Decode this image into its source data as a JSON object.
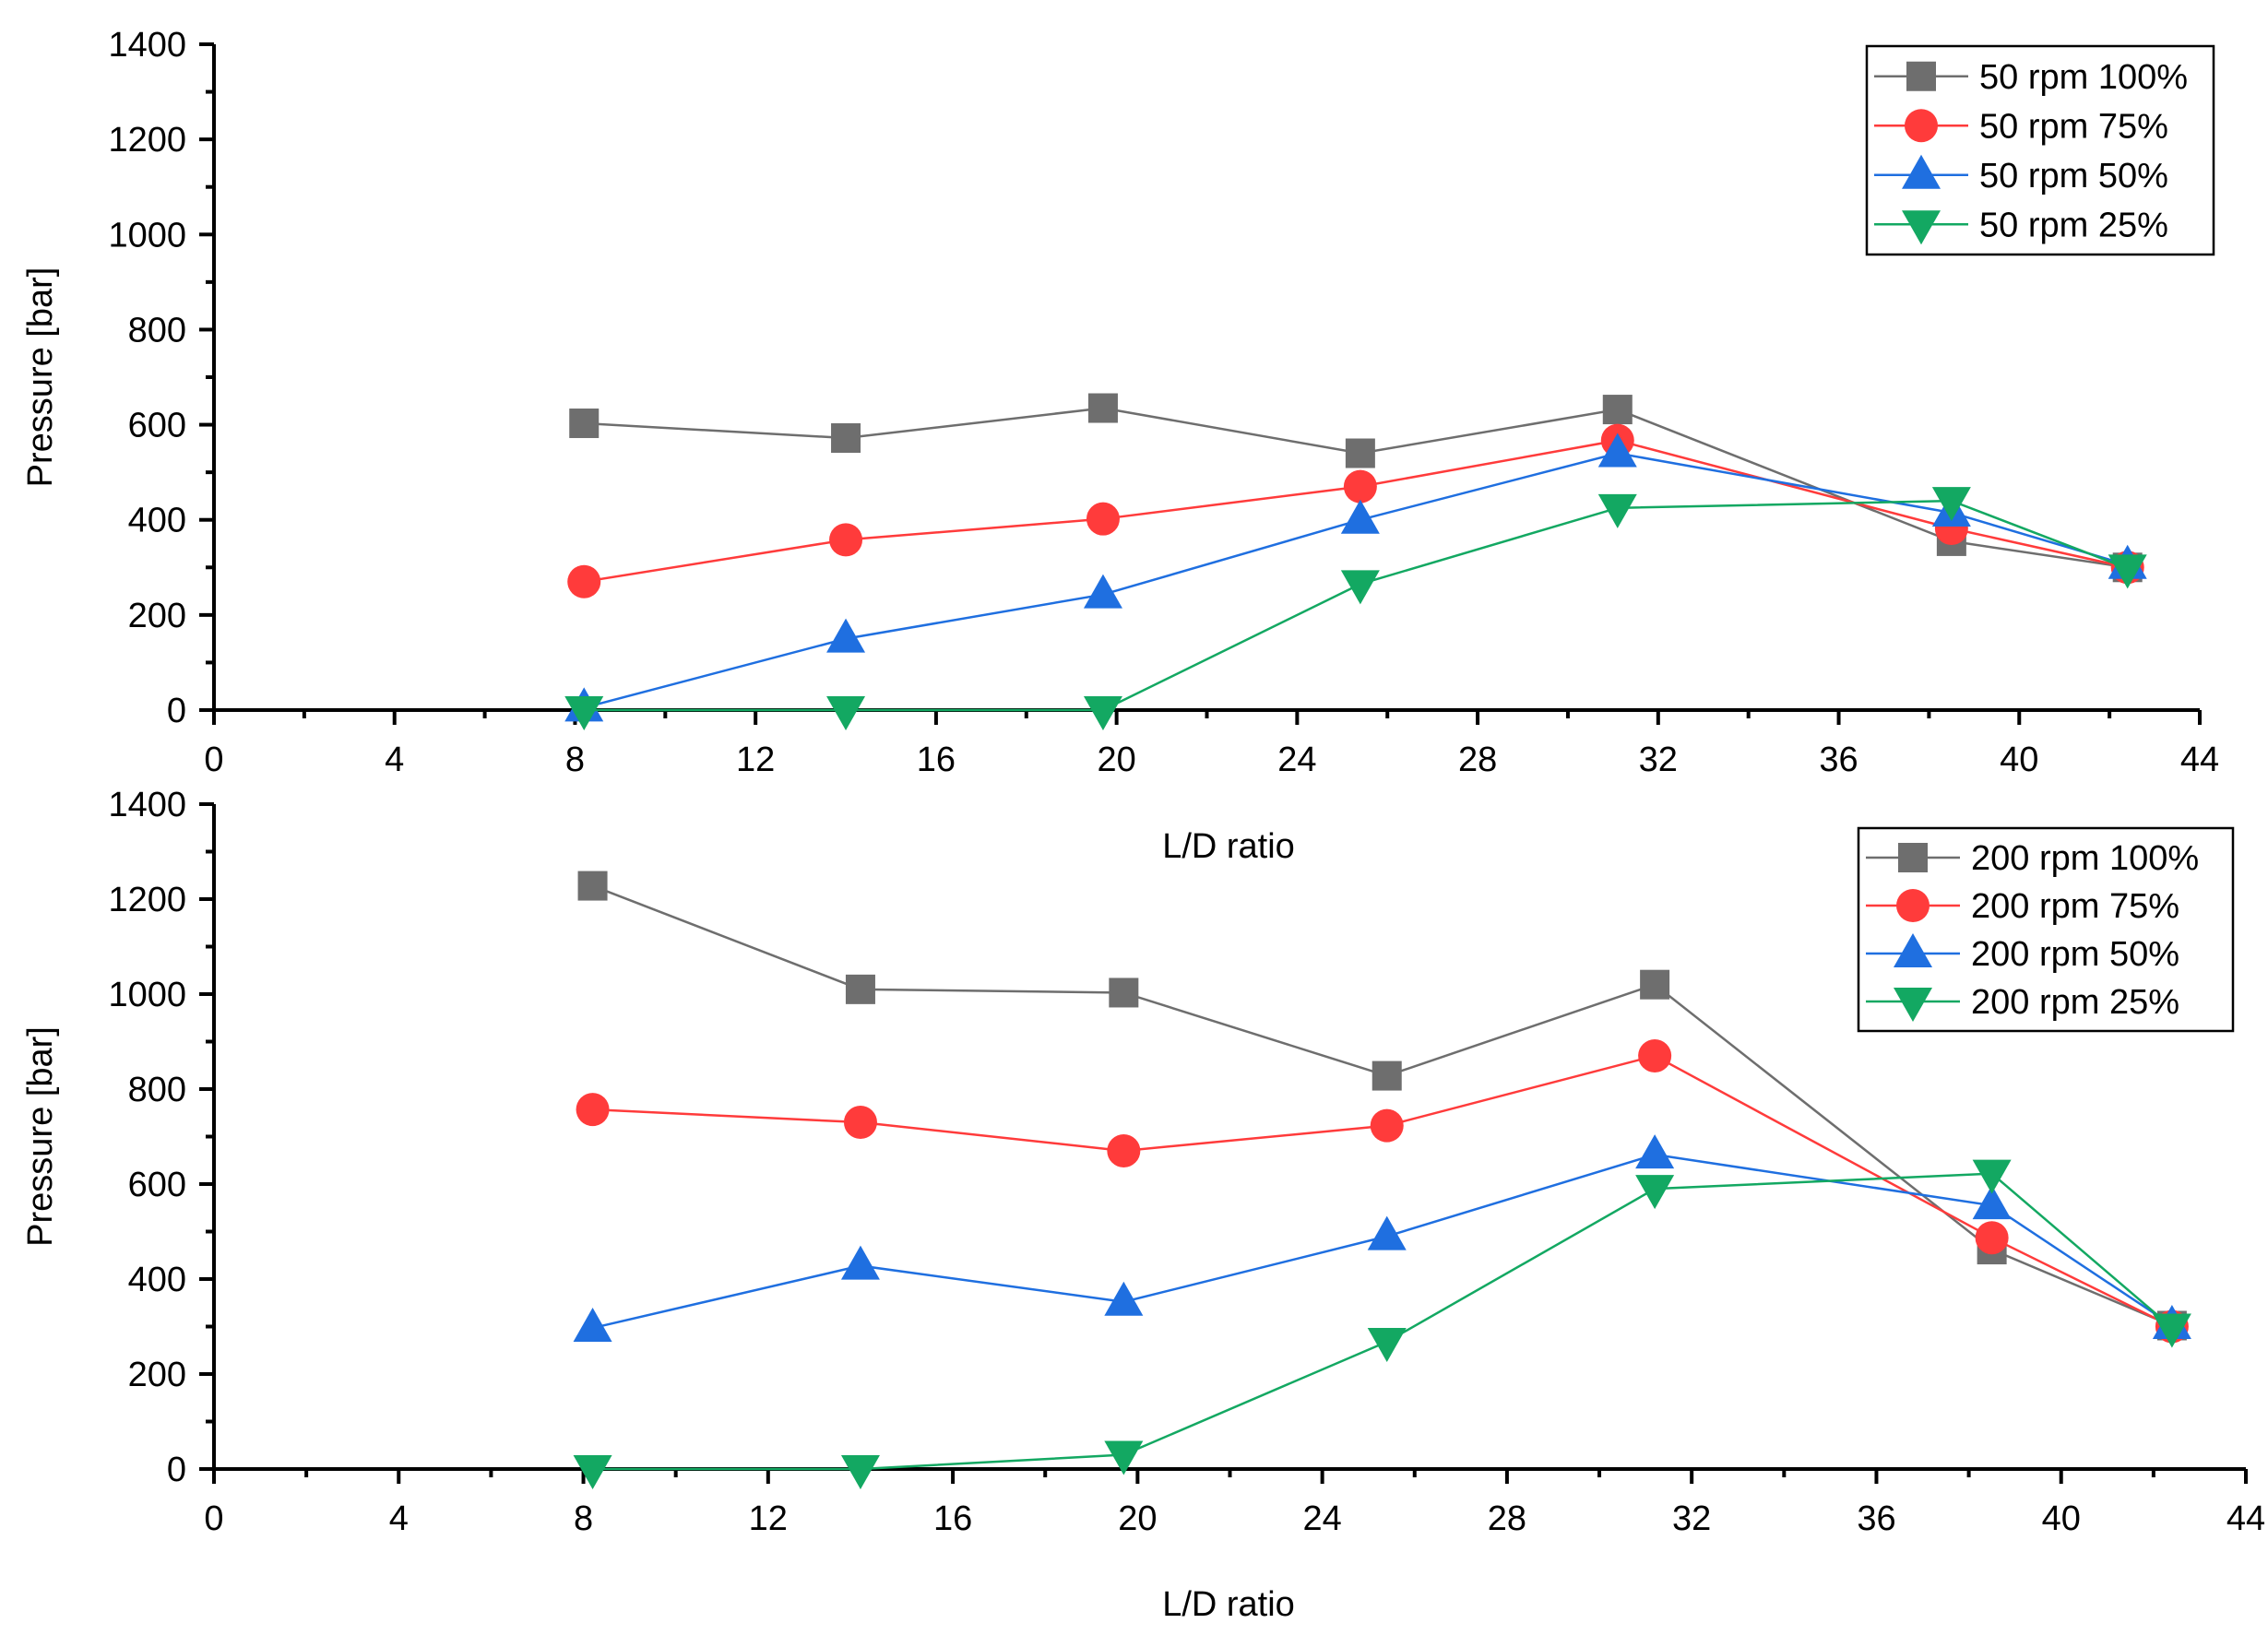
{
  "chart_data": [
    {
      "type": "line",
      "panel": "top",
      "xlabel": "L/D ratio",
      "ylabel": "Pressure [bar]",
      "xlim": [
        0,
        44
      ],
      "ylim": [
        0,
        1400
      ],
      "xticks": [
        "0",
        "4",
        "8",
        "12",
        "16",
        "20",
        "24",
        "28",
        "32",
        "36",
        "40",
        "44"
      ],
      "yticks": [
        "0",
        "200",
        "400",
        "600",
        "800",
        "1000",
        "1200",
        "1400"
      ],
      "x": [
        8.2,
        14,
        19.7,
        25.4,
        31.1,
        38.5,
        42.4
      ],
      "legend_position": "top-right",
      "series": [
        {
          "name": "50 rpm 100%",
          "marker": "square",
          "color": "#6e6e6e",
          "values": [
            603,
            572,
            635,
            540,
            632,
            355,
            300
          ]
        },
        {
          "name": "50 rpm 75%",
          "marker": "circle",
          "color": "#ff3b3b",
          "values": [
            270,
            358,
            402,
            470,
            567,
            382,
            300
          ]
        },
        {
          "name": "50 rpm 50%",
          "marker": "triangle-up",
          "color": "#1f6fe0",
          "values": [
            5,
            150,
            243,
            400,
            540,
            415,
            305
          ]
        },
        {
          "name": "50 rpm 25%",
          "marker": "triangle-down",
          "color": "#13a862",
          "values": [
            0,
            0,
            0,
            265,
            425,
            440,
            298
          ]
        }
      ]
    },
    {
      "type": "line",
      "panel": "bottom",
      "xlabel": "L/D ratio",
      "ylabel": "Pressure [bar]",
      "xlim": [
        0,
        44
      ],
      "ylim": [
        0,
        1400
      ],
      "xticks": [
        "0",
        "4",
        "8",
        "12",
        "16",
        "20",
        "24",
        "28",
        "32",
        "36",
        "40",
        "44"
      ],
      "yticks": [
        "0",
        "200",
        "400",
        "600",
        "800",
        "1000",
        "1200",
        "1400"
      ],
      "x": [
        8.2,
        14,
        19.7,
        25.4,
        31.2,
        38.5,
        42.4
      ],
      "legend_position": "top-right",
      "series": [
        {
          "name": "200 rpm 100%",
          "marker": "square",
          "color": "#6e6e6e",
          "values": [
            1228,
            1010,
            1003,
            828,
            1020,
            462,
            302
          ]
        },
        {
          "name": "200 rpm 75%",
          "marker": "circle",
          "color": "#ff3b3b",
          "values": [
            757,
            730,
            670,
            723,
            870,
            487,
            300
          ]
        },
        {
          "name": "200 rpm 50%",
          "marker": "triangle-up",
          "color": "#1f6fe0",
          "values": [
            297,
            428,
            352,
            490,
            662,
            555,
            303
          ]
        },
        {
          "name": "200 rpm 25%",
          "marker": "triangle-down",
          "color": "#13a862",
          "values": [
            0,
            0,
            30,
            268,
            590,
            622,
            298
          ]
        }
      ]
    }
  ]
}
